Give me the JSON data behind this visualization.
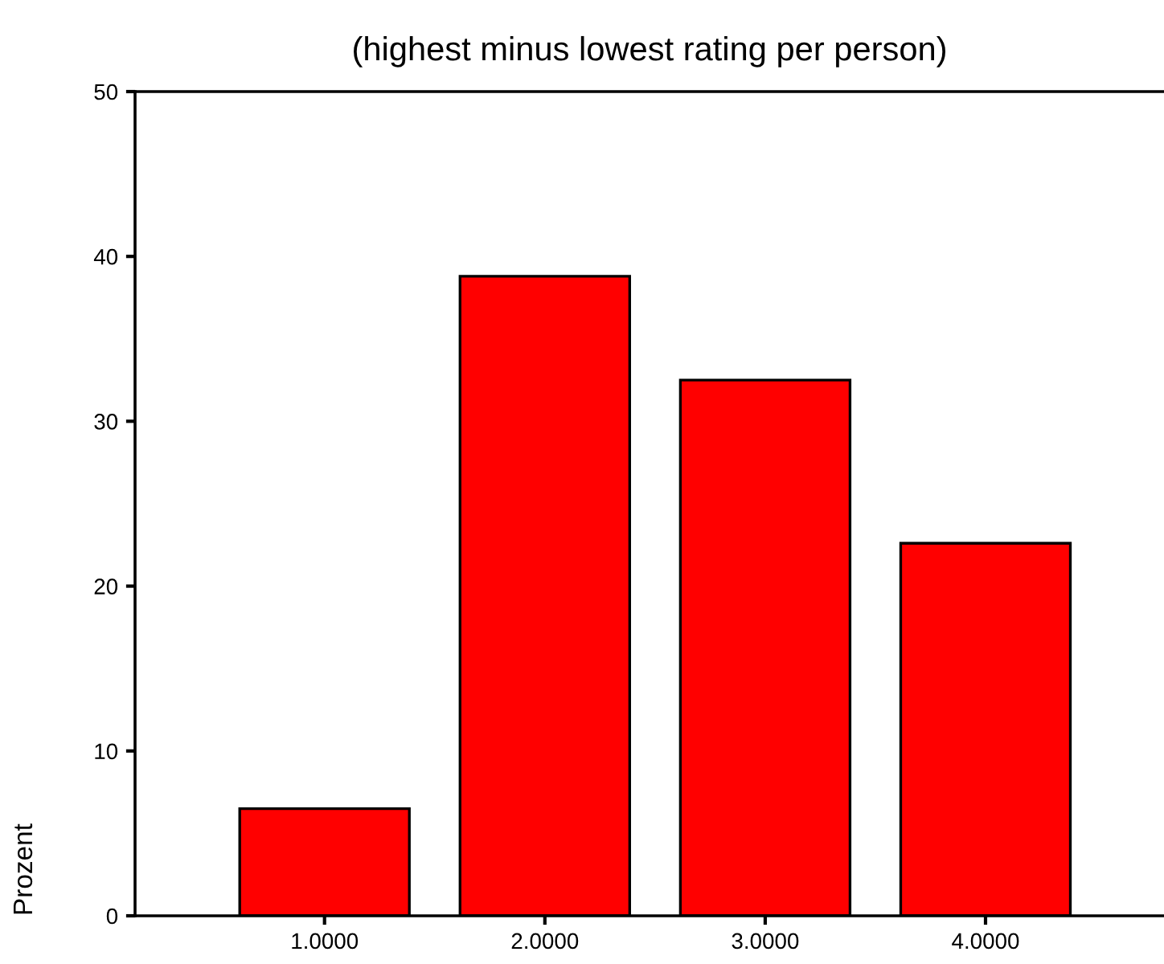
{
  "chart_data": {
    "type": "bar",
    "title": "(highest minus lowest rating per person)",
    "ylabel": "Prozent",
    "categories": [
      "1.0000",
      "2.0000",
      "3.0000",
      "4.0000"
    ],
    "values": [
      6.5,
      38.8,
      32.5,
      22.6
    ],
    "color": "#ff0000",
    "ylim": [
      0,
      50
    ],
    "yticks": [
      0,
      10,
      20,
      30,
      40,
      50
    ],
    "grid": false
  }
}
